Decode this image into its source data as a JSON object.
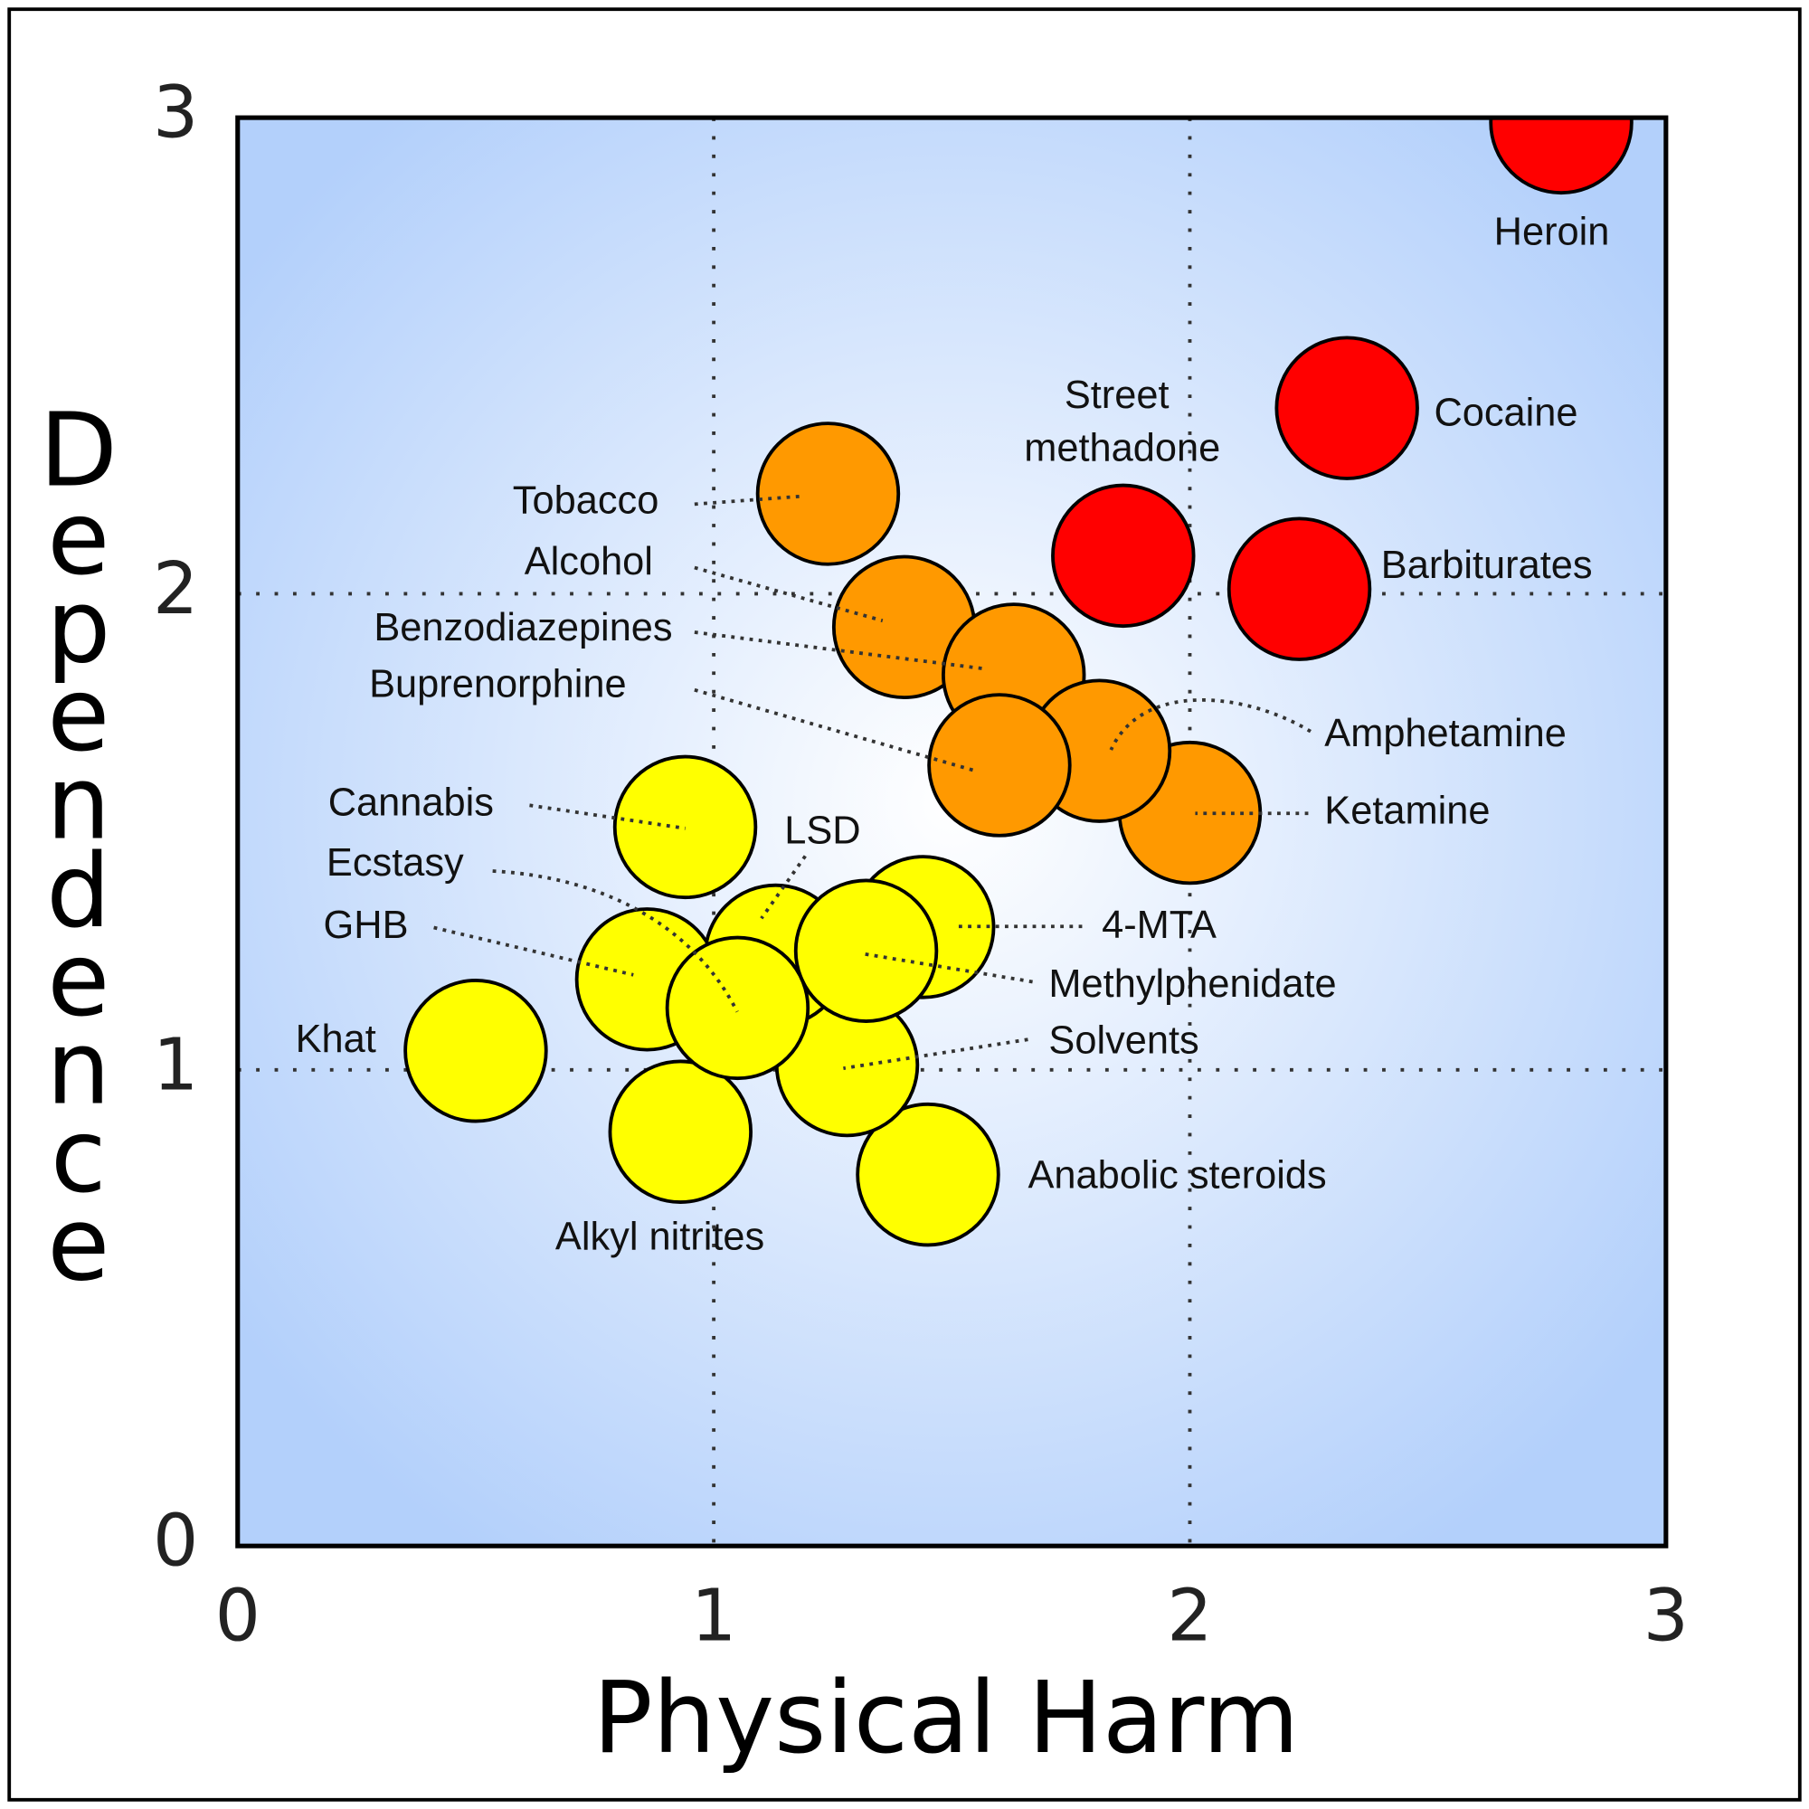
{
  "chart_data": {
    "type": "scatter",
    "x_label": "Physical Harm",
    "y_label": "Dependence",
    "labels": [
      "Heroin",
      "Cocaine",
      "Barbiturates",
      "Street methadone",
      "Tobacco",
      "Alcohol",
      "Benzodiazepines",
      "Ketamine",
      "Amphetamine",
      "Buprenorphine",
      "Cannabis",
      "Khat",
      "Alkyl nitrites",
      "Anabolic steroids",
      "4-MTA",
      "Solvents",
      "LSD",
      "GHB",
      "Methylphenidate",
      "Ecstasy"
    ],
    "x": [
      2.78,
      2.33,
      2.23,
      1.86,
      1.24,
      1.4,
      1.63,
      2.0,
      1.81,
      1.6,
      0.94,
      0.5,
      0.93,
      1.45,
      1.44,
      1.28,
      1.13,
      0.86,
      1.32,
      1.05
    ],
    "values": [
      2.99,
      2.39,
      2.01,
      2.08,
      2.21,
      1.93,
      1.83,
      1.54,
      1.67,
      1.64,
      1.51,
      1.04,
      0.87,
      0.78,
      1.3,
      1.01,
      1.24,
      1.19,
      1.25,
      1.13
    ],
    "colors": [
      "#ff0000",
      "#ff0000",
      "#ff0000",
      "#ff0000",
      "#ff9900",
      "#ff9900",
      "#ff9900",
      "#ff9900",
      "#ff9900",
      "#ff9900",
      "#ffff00",
      "#ffff00",
      "#ffff00",
      "#ffff00",
      "#ffff00",
      "#ffff00",
      "#ffff00",
      "#ffff00",
      "#ffff00",
      "#ffff00"
    ],
    "xlim": [
      0,
      3
    ],
    "ylim": [
      0,
      3
    ],
    "xticks": [
      0,
      1,
      2,
      3
    ],
    "yticks": [
      0,
      1,
      2,
      3
    ],
    "grid": true
  }
}
